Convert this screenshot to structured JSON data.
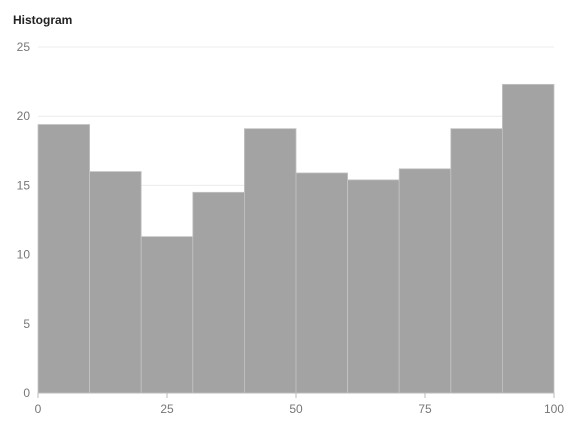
{
  "chart_data": {
    "type": "bar",
    "title": "Histogram",
    "xlabel": "",
    "ylabel": "",
    "bin_edges": [
      0,
      10,
      20,
      30,
      40,
      50,
      60,
      70,
      80,
      90,
      100
    ],
    "values": [
      19.4,
      16.0,
      11.3,
      14.5,
      19.1,
      15.9,
      15.4,
      16.2,
      19.1,
      22.3
    ],
    "xlim": [
      0,
      100
    ],
    "ylim": [
      0,
      25
    ],
    "x_ticks": [
      0,
      25,
      50,
      75,
      100
    ],
    "y_ticks": [
      0,
      5,
      10,
      15,
      20,
      25
    ],
    "grid": "horizontal",
    "legend": "none",
    "colors": {
      "bar_fill": "#a3a3a3",
      "bar_stroke": "#c4c4c4",
      "grid": "#ececec",
      "axis": "#bbbbbb",
      "tick_text": "#777777"
    }
  }
}
